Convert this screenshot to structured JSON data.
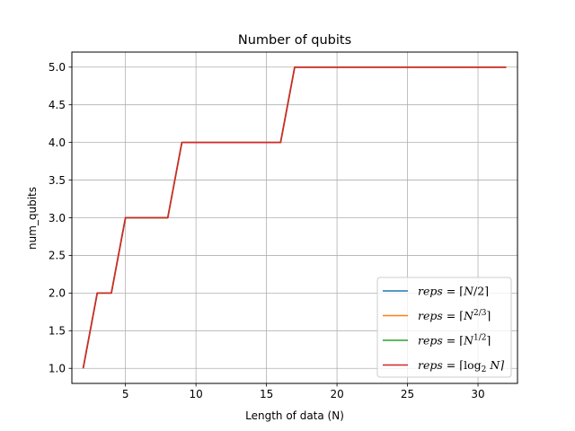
{
  "chart_data": {
    "type": "line",
    "title": "Number of qubits",
    "xlabel": "Length of data (N)",
    "ylabel": "num_qubits",
    "xlim": [
      1.2,
      32.8
    ],
    "ylim": [
      0.8,
      5.2
    ],
    "xticks": [
      5,
      10,
      15,
      20,
      25,
      30
    ],
    "yticks": [
      1.0,
      1.5,
      2.0,
      2.5,
      3.0,
      3.5,
      4.0,
      4.5,
      5.0
    ],
    "xtick_labels": [
      "5",
      "10",
      "15",
      "20",
      "25",
      "30"
    ],
    "ytick_labels": [
      "1.0",
      "1.5",
      "2.0",
      "2.5",
      "3.0",
      "3.5",
      "4.0",
      "4.5",
      "5.0"
    ],
    "grid": true,
    "legend_position": "lower-right",
    "x": [
      2,
      3,
      4,
      5,
      6,
      7,
      8,
      9,
      10,
      11,
      12,
      13,
      14,
      15,
      16,
      17,
      18,
      19,
      20,
      21,
      22,
      23,
      24,
      25,
      26,
      27,
      28,
      29,
      30,
      31,
      32
    ],
    "series": [
      {
        "name": "reps = ⌈N/2⌉",
        "legend_parts": {
          "pre": "reps",
          "eq": " = ⌈",
          "base": "N",
          "sup": "",
          "tail": "/2⌉"
        },
        "color": "#1f77b4",
        "values": [
          1,
          2,
          2,
          3,
          3,
          3,
          3,
          4,
          4,
          4,
          4,
          4,
          4,
          4,
          4,
          5,
          5,
          5,
          5,
          5,
          5,
          5,
          5,
          5,
          5,
          5,
          5,
          5,
          5,
          5,
          5
        ]
      },
      {
        "name": "reps = ⌈N^(2/3)⌉",
        "legend_parts": {
          "pre": "reps",
          "eq": " = ⌈",
          "base": "N",
          "sup": "2/3",
          "tail": "⌉"
        },
        "color": "#ff7f0e",
        "values": [
          1,
          2,
          2,
          3,
          3,
          3,
          3,
          4,
          4,
          4,
          4,
          4,
          4,
          4,
          4,
          5,
          5,
          5,
          5,
          5,
          5,
          5,
          5,
          5,
          5,
          5,
          5,
          5,
          5,
          5,
          5
        ]
      },
      {
        "name": "reps = ⌈N^(1/2)⌉",
        "legend_parts": {
          "pre": "reps",
          "eq": " = ⌈",
          "base": "N",
          "sup": "1/2",
          "tail": "⌉"
        },
        "color": "#2ca02c",
        "values": [
          1,
          2,
          2,
          3,
          3,
          3,
          3,
          4,
          4,
          4,
          4,
          4,
          4,
          4,
          4,
          5,
          5,
          5,
          5,
          5,
          5,
          5,
          5,
          5,
          5,
          5,
          5,
          5,
          5,
          5,
          5
        ]
      },
      {
        "name": "reps = ⌈log2 N⌉",
        "legend_parts": {
          "pre": "reps",
          "eq": " = ⌈log",
          "base": "",
          "sub": "2",
          "tail": " N⌉"
        },
        "color": "#d62728",
        "values": [
          1,
          2,
          2,
          3,
          3,
          3,
          3,
          4,
          4,
          4,
          4,
          4,
          4,
          4,
          4,
          5,
          5,
          5,
          5,
          5,
          5,
          5,
          5,
          5,
          5,
          5,
          5,
          5,
          5,
          5,
          5
        ]
      }
    ]
  }
}
